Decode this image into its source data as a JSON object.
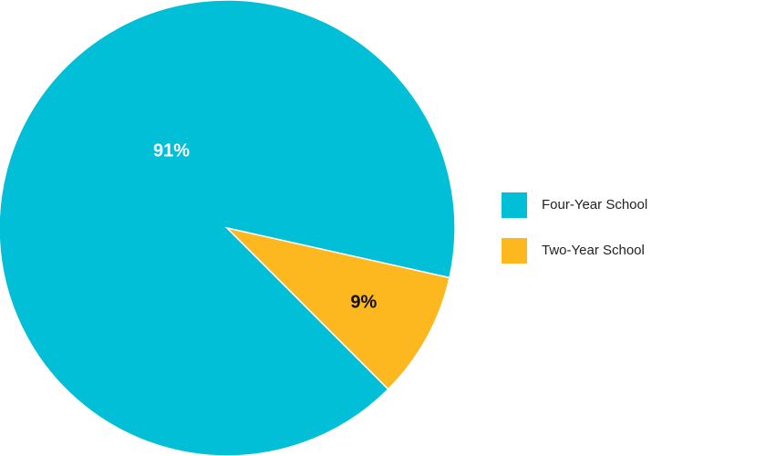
{
  "chart_data": {
    "type": "pie",
    "categories": [
      "Four-Year School",
      "Two-Year School"
    ],
    "values": [
      91,
      9
    ],
    "value_labels": [
      "91%",
      "9%"
    ],
    "colors": [
      "#00bfd6",
      "#fdb71f"
    ],
    "legend": "right"
  }
}
